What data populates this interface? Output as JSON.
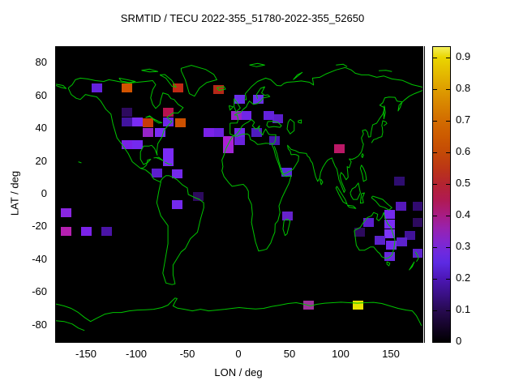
{
  "title": "SRMTID / TECU 2022-355_51780-2022-355_52650",
  "colors": {
    "background": "#ffffff",
    "plot_background": "#000000",
    "coastline": "#00c400",
    "axis": "#000000"
  },
  "axes": {
    "xlabel": "LON / deg",
    "ylabel": "LAT / deg",
    "xrange": [
      -180,
      180
    ],
    "yrange": [
      -90,
      90
    ],
    "xtick_labels": [
      "-150",
      "-100",
      "-50",
      "0",
      "50",
      "100",
      "150"
    ],
    "xtick_values": [
      -150,
      -100,
      -50,
      0,
      50,
      100,
      150
    ],
    "ytick_labels": [
      "80",
      "60",
      "40",
      "20",
      "0",
      "-20",
      "-40",
      "-60",
      "-80"
    ],
    "ytick_values": [
      80,
      60,
      40,
      20,
      0,
      -20,
      -40,
      -60,
      -80
    ]
  },
  "colorbar": {
    "range": [
      0,
      0.933
    ],
    "tick_labels": [
      "0",
      "0.1",
      "0.2",
      "0.3",
      "0.4",
      "0.5",
      "0.6",
      "0.7",
      "0.8",
      "0.9"
    ],
    "tick_values": [
      0,
      0.1,
      0.2,
      0.3,
      0.4,
      0.5,
      0.6,
      0.7,
      0.8,
      0.9
    ],
    "gradient_stops": [
      {
        "v": 0.0,
        "c": "#000000"
      },
      {
        "v": 0.05,
        "c": "#150429"
      },
      {
        "v": 0.1,
        "c": "#270a50"
      },
      {
        "v": 0.15,
        "c": "#3a1085"
      },
      {
        "v": 0.2,
        "c": "#4c16b5"
      },
      {
        "v": 0.25,
        "c": "#5c2ae2"
      },
      {
        "v": 0.28,
        "c": "#6c2ae0"
      },
      {
        "v": 0.32,
        "c": "#8426cc"
      },
      {
        "v": 0.36,
        "c": "#9822ae"
      },
      {
        "v": 0.4,
        "c": "#a81c84"
      },
      {
        "v": 0.45,
        "c": "#b01a52"
      },
      {
        "v": 0.5,
        "c": "#b42430"
      },
      {
        "v": 0.55,
        "c": "#bc3616"
      },
      {
        "v": 0.6,
        "c": "#c44a06"
      },
      {
        "v": 0.65,
        "c": "#cc5a00"
      },
      {
        "v": 0.7,
        "c": "#d26c00"
      },
      {
        "v": 0.75,
        "c": "#d88400"
      },
      {
        "v": 0.8,
        "c": "#de9e00"
      },
      {
        "v": 0.85,
        "c": "#e4ba00"
      },
      {
        "v": 0.9,
        "c": "#ead600"
      },
      {
        "v": 0.933,
        "c": "#f4f05c"
      }
    ]
  },
  "chart_data": {
    "type": "heatmap",
    "title": "SRMTID / TECU 2022-355_51780-2022-355_52650",
    "xlabel": "LON / deg",
    "ylabel": "LAT / deg",
    "value_unit": "TECU",
    "xlim": [
      -180,
      180
    ],
    "ylim": [
      -90,
      90
    ],
    "value_range": [
      0,
      0.933
    ],
    "cell_size_deg": {
      "lon": 10,
      "lat": 5.5
    },
    "cells": [
      {
        "lon": -140,
        "lat": 65,
        "value": 0.21,
        "color": "#6322dd"
      },
      {
        "lon": -110,
        "lat": 65,
        "value": 0.66,
        "color": "#d25400"
      },
      {
        "lon": -60,
        "lat": 65,
        "value": 0.52,
        "color": "#c22a14"
      },
      {
        "lon": -20,
        "lat": 64,
        "value": 0.5,
        "color": "#b52818"
      },
      {
        "lon": -110,
        "lat": 50,
        "value": 0.07,
        "color": "#2d0a5e"
      },
      {
        "lon": -70,
        "lat": 50,
        "value": 0.45,
        "color": "#b8124f"
      },
      {
        "lon": -110,
        "lat": 44.5,
        "value": 0.13,
        "color": "#41149e"
      },
      {
        "lon": -100,
        "lat": 44.5,
        "value": 0.25,
        "color": "#7a2bf5"
      },
      {
        "lon": -90,
        "lat": 44,
        "value": 0.57,
        "color": "#c83a06"
      },
      {
        "lon": -70,
        "lat": 44.5,
        "value": 0.22,
        "color": "#7026e8"
      },
      {
        "lon": -58,
        "lat": 44,
        "value": 0.62,
        "color": "#cc5000"
      },
      {
        "lon": -90,
        "lat": 38,
        "value": 0.3,
        "color": "#9524c8"
      },
      {
        "lon": -78,
        "lat": 38,
        "value": 0.25,
        "color": "#7a2bf5"
      },
      {
        "lon": -110,
        "lat": 30.5,
        "value": 0.24,
        "color": "#7a22e8"
      },
      {
        "lon": -100,
        "lat": 30.5,
        "value": 0.23,
        "color": "#7429ee"
      },
      {
        "lon": -70,
        "lat": 25.5,
        "value": 0.25,
        "color": "#7a2bf5"
      },
      {
        "lon": -70,
        "lat": 20,
        "value": 0.25,
        "color": "#7a2bf5"
      },
      {
        "lon": -81,
        "lat": 13,
        "value": 0.17,
        "color": "#5c1ecc"
      },
      {
        "lon": -61,
        "lat": 12.5,
        "value": 0.23,
        "color": "#7429ee"
      },
      {
        "lon": -61,
        "lat": -6,
        "value": 0.23,
        "color": "#7429ee"
      },
      {
        "lon": -40,
        "lat": -1,
        "value": 0.07,
        "color": "#2d0a5e"
      },
      {
        "lon": -170,
        "lat": -11,
        "value": 0.27,
        "color": "#8a26e2"
      },
      {
        "lon": -170,
        "lat": -22.5,
        "value": 0.37,
        "color": "#b520b0"
      },
      {
        "lon": -150,
        "lat": -22.5,
        "value": 0.25,
        "color": "#7a22e8"
      },
      {
        "lon": -130,
        "lat": -22.5,
        "value": 0.13,
        "color": "#4a14a6"
      },
      {
        "lon": 0,
        "lat": 58,
        "value": 0.22,
        "color": "#6a2fe8"
      },
      {
        "lon": 19,
        "lat": 58,
        "value": 0.22,
        "color": "#6a2fe8"
      },
      {
        "lon": -3,
        "lat": 48,
        "value": 0.31,
        "color": "#9a22cc"
      },
      {
        "lon": 7,
        "lat": 48,
        "value": 0.22,
        "color": "#7026e8"
      },
      {
        "lon": 29,
        "lat": 48,
        "value": 0.2,
        "color": "#6322dd"
      },
      {
        "lon": 38,
        "lat": 46,
        "value": 0.17,
        "color": "#5c1ecc"
      },
      {
        "lon": -30,
        "lat": 38,
        "value": 0.25,
        "color": "#7a22e8"
      },
      {
        "lon": -20,
        "lat": 38,
        "value": 0.2,
        "color": "#6a22dd"
      },
      {
        "lon": -11,
        "lat": 33,
        "value": 0.33,
        "color": "#ad1fd4"
      },
      {
        "lon": -11,
        "lat": 28,
        "value": 0.32,
        "color": "#a224d8"
      },
      {
        "lon": 0,
        "lat": 38,
        "value": 0.22,
        "color": "#7026e8"
      },
      {
        "lon": 0,
        "lat": 33,
        "value": 0.2,
        "color": "#6a22dd"
      },
      {
        "lon": 17,
        "lat": 38,
        "value": 0.15,
        "color": "#4e1cc0"
      },
      {
        "lon": 35,
        "lat": 33,
        "value": 0.13,
        "color": "#4418aa"
      },
      {
        "lon": 46.5,
        "lat": 13.5,
        "value": 0.2,
        "color": "#5a2ae0"
      },
      {
        "lon": 47,
        "lat": -13,
        "value": 0.18,
        "color": "#6622cc"
      },
      {
        "lon": 98,
        "lat": 28,
        "value": 0.42,
        "color": "#bb1866"
      },
      {
        "lon": 157,
        "lat": 8,
        "value": 0.08,
        "color": "#2e0d70"
      },
      {
        "lon": 159,
        "lat": -7,
        "value": 0.15,
        "color": "#5518bb"
      },
      {
        "lon": 176,
        "lat": -7,
        "value": 0.08,
        "color": "#310a70"
      },
      {
        "lon": 118,
        "lat": -23,
        "value": 0.07,
        "color": "#2d0a5e"
      },
      {
        "lon": 127,
        "lat": -17,
        "value": 0.17,
        "color": "#5c1ecc"
      },
      {
        "lon": 176,
        "lat": -17,
        "value": 0.07,
        "color": "#2d0a5e"
      },
      {
        "lon": 138,
        "lat": -28,
        "value": 0.17,
        "color": "#5c22cc"
      },
      {
        "lon": 148,
        "lat": -12,
        "value": 0.23,
        "color": "#7429ee"
      },
      {
        "lon": 148,
        "lat": -18,
        "value": 0.25,
        "color": "#7a2bf5"
      },
      {
        "lon": 148,
        "lat": -24,
        "value": 0.26,
        "color": "#7d35fa"
      },
      {
        "lon": 149,
        "lat": -31,
        "value": 0.23,
        "color": "#7429ee"
      },
      {
        "lon": 148,
        "lat": -38,
        "value": 0.21,
        "color": "#6a28e0"
      },
      {
        "lon": 160,
        "lat": -29,
        "value": 0.17,
        "color": "#5c22cc"
      },
      {
        "lon": 168,
        "lat": -25,
        "value": 0.12,
        "color": "#41129a"
      },
      {
        "lon": 176,
        "lat": -36,
        "value": 0.17,
        "color": "#5c22cc"
      },
      {
        "lon": 68,
        "lat": -67.5,
        "value": 0.35,
        "color": "#9c3399"
      },
      {
        "lon": 117,
        "lat": -67.5,
        "value": 0.93,
        "color": "#e8e400"
      }
    ]
  }
}
